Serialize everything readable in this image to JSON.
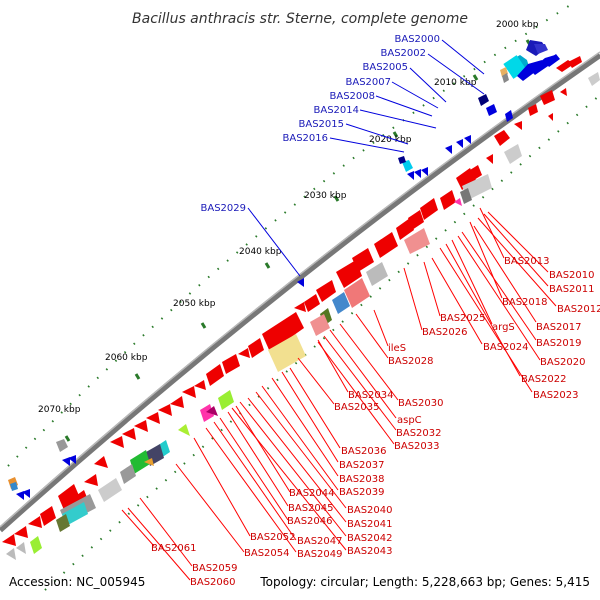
{
  "title": "Bacillus anthracis str. Sterne, complete genome",
  "footer": {
    "accession": "Accession: NC_005945",
    "topology": "Topology: circular; Length: 5,228,663 bp; Genes: 5,415"
  },
  "scale_labels": [
    "2000 kbp",
    "2010 kbp",
    "2020 kbp",
    "2030 kbp",
    "2040 kbp",
    "2050 kbp",
    "2060 kbp",
    "2070 kbp"
  ],
  "blue_labels": [
    "BAS2000",
    "BAS2002",
    "BAS2005",
    "BAS2007",
    "BAS2008",
    "BAS2014",
    "BAS2015",
    "BAS2016",
    "BAS2029"
  ],
  "red_labels": [
    "BAS2013",
    "BAS2010",
    "BAS2011",
    "BAS2012",
    "BAS2018",
    "BAS2017",
    "BAS2025",
    "BAS2026",
    "argS",
    "BAS2019",
    "BAS2024",
    "BAS2020",
    "ileS",
    "BAS2028",
    "BAS2022",
    "BAS2023",
    "BAS2034",
    "BAS2030",
    "BAS2035",
    "aspC",
    "BAS2032",
    "BAS2033",
    "BAS2036",
    "BAS2037",
    "BAS2038",
    "BAS2039",
    "BAS2044",
    "BAS2040",
    "BAS2045",
    "BAS2041",
    "BAS2046",
    "BAS2042",
    "BAS2047",
    "BAS2043",
    "BAS2052",
    "BAS2049",
    "BAS2054",
    "BAS2061",
    "BAS2059",
    "BAS2060"
  ],
  "colors": {
    "backbone": "#777777",
    "forward_gene": "#ee0000",
    "reverse_gene": "#0000dd",
    "leader_red": "#ff0000",
    "leader_blue": "#0000dd",
    "tick": "#2a7a2a"
  }
}
